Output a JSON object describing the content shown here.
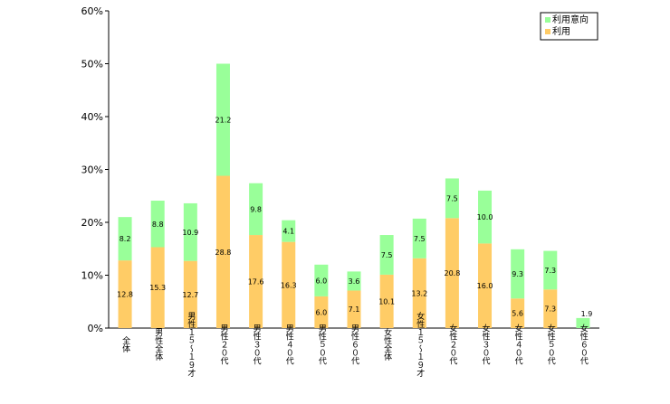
{
  "chart_data": {
    "type": "bar",
    "stacked": true,
    "categories": [
      "全体",
      "男性全体",
      "男性１５～１９才",
      "男性２０代",
      "男性３０代",
      "男性４０代",
      "男性５０代",
      "男性６０代",
      "女性全体",
      "女性１５～１９才",
      "女性２０代",
      "女性３０代",
      "女性４０代",
      "女性５０代",
      "女性６０代"
    ],
    "series": [
      {
        "name": "利用",
        "color": "#ffcc66",
        "values": [
          12.8,
          15.3,
          12.7,
          28.8,
          17.6,
          16.3,
          6.0,
          7.1,
          10.1,
          13.2,
          20.8,
          16.0,
          5.6,
          7.3,
          0
        ],
        "labels": [
          "12.8",
          "15.3",
          "12.7",
          "28.8",
          "17.6",
          "16.3",
          "6.0",
          "7.1",
          "10.1",
          "13.2",
          "20.8",
          "16.0",
          "5.6",
          "7.3",
          ""
        ]
      },
      {
        "name": "利用意向",
        "color": "#99ff99",
        "values": [
          8.2,
          8.8,
          10.9,
          21.2,
          9.8,
          4.1,
          6.0,
          3.6,
          7.5,
          7.5,
          7.5,
          10.0,
          9.3,
          7.3,
          1.9
        ],
        "labels": [
          "8.2",
          "8.8",
          "10.9",
          "21.2",
          "9.8",
          "4.1",
          "6.0",
          "3.6",
          "7.5",
          "7.5",
          "7.5",
          "10.0",
          "9.3",
          "7.3",
          "1.9"
        ]
      }
    ],
    "ylim": [
      0,
      60
    ],
    "yticks": [
      "0%",
      "10%",
      "20%",
      "30%",
      "40%",
      "50%",
      "60%"
    ],
    "legend_position": "top-right",
    "legend_order": [
      "利用意向",
      "利用"
    ],
    "grid": false
  }
}
